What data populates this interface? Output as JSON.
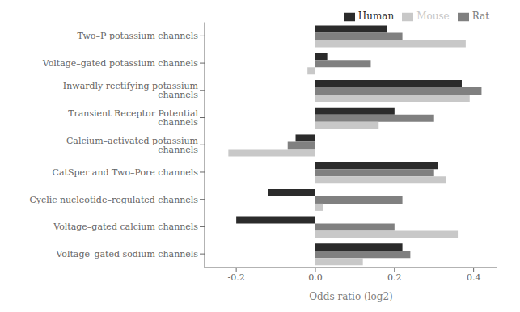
{
  "chart_data": {
    "type": "bar",
    "orientation": "horizontal",
    "xlabel": "Odds ratio (log2)",
    "categories": [
      "Two–P potassium channels",
      "Voltage–gated potassium channels",
      "Inwardly rectifying potassium channels",
      "Transient Receptor Potential channels",
      "Calcium–activated potassium channels",
      "CatSper and Two–Pore channels",
      "Cyclic nucleotide–regulated channels",
      "Voltage–gated calcium channels",
      "Voltage–gated sodium channels"
    ],
    "series": [
      {
        "name": "Human",
        "color": "#2b2b2b",
        "values": [
          0.18,
          0.03,
          0.37,
          0.2,
          -0.05,
          0.31,
          -0.12,
          -0.2,
          0.22
        ]
      },
      {
        "name": "Rat",
        "color": "#808080",
        "values": [
          0.22,
          0.14,
          0.42,
          0.3,
          -0.07,
          0.3,
          0.22,
          0.2,
          0.24
        ]
      },
      {
        "name": "Mouse",
        "color": "#c8c8c8",
        "values": [
          0.38,
          -0.02,
          0.39,
          0.16,
          -0.22,
          0.33,
          0.02,
          0.36,
          0.12
        ]
      }
    ],
    "xlim": [
      -0.28,
      0.46
    ],
    "xticks": [
      -0.2,
      {
        "value": 0,
        "label": "0.0"
      },
      0.2,
      0.4
    ],
    "legend": "upper right",
    "grid": false
  }
}
